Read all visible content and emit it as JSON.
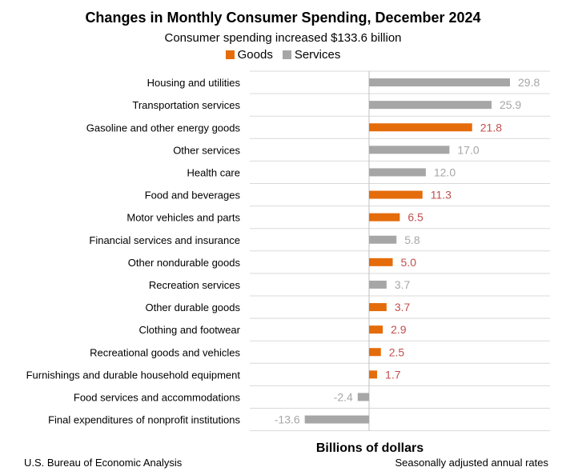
{
  "colors": {
    "goods": "#e46c0a",
    "services": "#a6a6a6",
    "goods_label": "#c0504d",
    "services_label": "#a6a6a6",
    "goods_label_dark": "#c0392b"
  },
  "footer": {
    "source": "U.S. Bureau of Economic Analysis",
    "note": "Seasonally adjusted annual rates"
  },
  "chart_data": {
    "type": "bar",
    "orientation": "horizontal",
    "title": "Changes in Monthly Consumer Spending, December 2024",
    "subtitle": "Consumer spending increased $133.6 billion",
    "xlabel": "Billions of dollars",
    "ylabel": "",
    "xlim": [
      -13.6,
      29.8
    ],
    "grid": true,
    "legend": {
      "position": "top",
      "entries": [
        {
          "name": "Goods",
          "key": "goods"
        },
        {
          "name": "Services",
          "key": "services"
        }
      ]
    },
    "categories": [
      "Housing and utilities",
      "Transportation services",
      "Gasoline and other energy goods",
      "Other services",
      "Health care",
      "Food and beverages",
      "Motor vehicles and parts",
      "Financial services and insurance",
      "Other nondurable goods",
      "Recreation services",
      "Other durable goods",
      "Clothing and footwear",
      "Recreational goods and vehicles",
      "Furnishings and durable household equipment",
      "Food services and accommodations",
      "Final expenditures of nonprofit institutions"
    ],
    "values": [
      29.8,
      25.9,
      21.8,
      17.0,
      12.0,
      11.3,
      6.5,
      5.8,
      5.0,
      3.7,
      3.7,
      2.9,
      2.5,
      1.7,
      -2.4,
      -13.6
    ],
    "labels": [
      "29.8",
      "25.9",
      "21.8",
      "17.0",
      "12.0",
      "11.3",
      "6.5",
      "5.8",
      "5.0",
      "3.7",
      "3.7",
      "2.9",
      "2.5",
      "1.7",
      "-2.4",
      "-13.6"
    ],
    "series_type": [
      "services",
      "services",
      "goods",
      "services",
      "services",
      "goods",
      "goods",
      "services",
      "goods",
      "services",
      "goods",
      "goods",
      "goods",
      "goods",
      "services",
      "services"
    ]
  }
}
